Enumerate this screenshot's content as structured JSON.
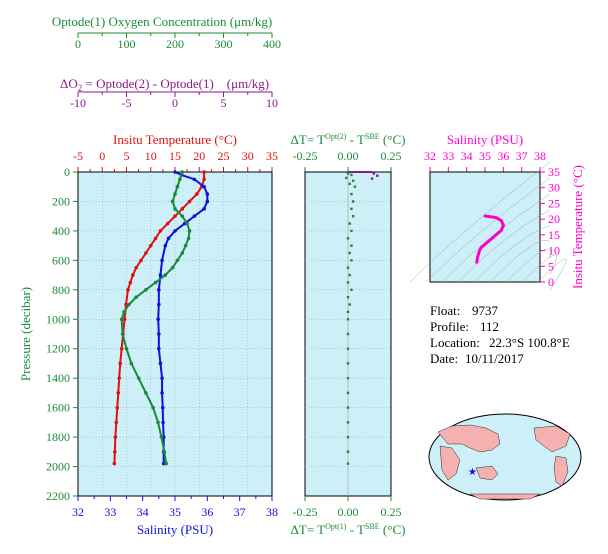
{
  "colors": {
    "oxygen": "#1a8a3a",
    "delta_o2": "#8a1a8a",
    "temperature": "#e01010",
    "salinity": "#1010e0",
    "pressure": "#1a8a3a",
    "panel_bg": "#cdeff7",
    "ts_curve": "#ff00cc",
    "delta_t": "#1a8a3a"
  },
  "info": {
    "float_label": "Float:",
    "float_value": "9737",
    "profile_label": "Profile:",
    "profile_value": "112",
    "location_label": "Location:",
    "location_value": "22.3°S 100.8°E",
    "date_label": "Date:",
    "date_value": "10/11/2017"
  },
  "chart_data": [
    {
      "type": "line",
      "panel": "main-profile",
      "axes": {
        "oxygen": {
          "label": "Optode(1) Oxygen Concentration (μm/kg)",
          "range": [
            0,
            400
          ],
          "ticks": [
            "0",
            "100",
            "200",
            "300",
            "400"
          ]
        },
        "delta_o2": {
          "label_left": "ΔO",
          "label_sub": "2",
          "label_right": " = Optode(2) - Optode(1)    (μm/kg)",
          "range": [
            -10,
            10
          ],
          "ticks": [
            "-10",
            "-5",
            "0",
            "5",
            "10"
          ]
        },
        "temperature": {
          "label": "Insitu Temperature (°C)",
          "range": [
            -5,
            35
          ],
          "ticks": [
            "-5",
            "0",
            "5",
            "10",
            "15",
            "20",
            "25",
            "30",
            "35"
          ]
        },
        "salinity": {
          "label": "Salinity (PSU)",
          "range": [
            32,
            38
          ],
          "ticks": [
            "32",
            "33",
            "34",
            "35",
            "36",
            "37",
            "38"
          ]
        },
        "pressure": {
          "label": "Pressure (decibar)",
          "range": [
            0,
            2200
          ],
          "ticks": [
            "0",
            "200",
            "400",
            "600",
            "800",
            "1000",
            "1200",
            "1400",
            "1600",
            "1800",
            "2000",
            "2200"
          ]
        }
      },
      "series": [
        {
          "name": "Insitu Temperature",
          "axis": "temperature",
          "points": [
            [
              21.0,
              0
            ],
            [
              21.0,
              50
            ],
            [
              20.5,
              100
            ],
            [
              19.5,
              150
            ],
            [
              18.0,
              200
            ],
            [
              16.5,
              250
            ],
            [
              15.0,
              300
            ],
            [
              13.5,
              350
            ],
            [
              12.0,
              400
            ],
            [
              11.0,
              450
            ],
            [
              10.0,
              500
            ],
            [
              9.0,
              550
            ],
            [
              8.0,
              600
            ],
            [
              7.0,
              650
            ],
            [
              6.3,
              700
            ],
            [
              5.8,
              750
            ],
            [
              5.3,
              800
            ],
            [
              4.9,
              900
            ],
            [
              4.6,
              1000
            ],
            [
              4.3,
              1100
            ],
            [
              4.0,
              1200
            ],
            [
              3.7,
              1300
            ],
            [
              3.5,
              1400
            ],
            [
              3.3,
              1500
            ],
            [
              3.1,
              1600
            ],
            [
              2.9,
              1700
            ],
            [
              2.7,
              1800
            ],
            [
              2.6,
              1900
            ],
            [
              2.5,
              1980
            ]
          ]
        },
        {
          "name": "Salinity",
          "axis": "salinity",
          "points": [
            [
              35.0,
              0
            ],
            [
              35.2,
              20
            ],
            [
              35.6,
              50
            ],
            [
              35.9,
              100
            ],
            [
              36.0,
              150
            ],
            [
              36.0,
              200
            ],
            [
              35.9,
              250
            ],
            [
              35.6,
              300
            ],
            [
              35.3,
              350
            ],
            [
              35.0,
              400
            ],
            [
              34.8,
              450
            ],
            [
              34.7,
              500
            ],
            [
              34.6,
              600
            ],
            [
              34.55,
              700
            ],
            [
              34.5,
              800
            ],
            [
              34.5,
              900
            ],
            [
              34.48,
              1000
            ],
            [
              34.5,
              1100
            ],
            [
              34.5,
              1200
            ],
            [
              34.55,
              1300
            ],
            [
              34.6,
              1400
            ],
            [
              34.6,
              1500
            ],
            [
              34.62,
              1600
            ],
            [
              34.63,
              1700
            ],
            [
              34.65,
              1800
            ],
            [
              34.65,
              1900
            ],
            [
              34.65,
              1980
            ]
          ]
        },
        {
          "name": "Optode(1) Oxygen Concentration",
          "axis": "oxygen",
          "points": [
            [
              215,
              0
            ],
            [
              210,
              50
            ],
            [
              205,
              100
            ],
            [
              200,
              150
            ],
            [
              195,
              200
            ],
            [
              200,
              250
            ],
            [
              215,
              300
            ],
            [
              225,
              350
            ],
            [
              230,
              400
            ],
            [
              228,
              450
            ],
            [
              222,
              500
            ],
            [
              215,
              550
            ],
            [
              205,
              600
            ],
            [
              195,
              650
            ],
            [
              180,
              700
            ],
            [
              160,
              750
            ],
            [
              140,
              800
            ],
            [
              120,
              850
            ],
            [
              105,
              900
            ],
            [
              95,
              950
            ],
            [
              90,
              1000
            ],
            [
              92,
              1100
            ],
            [
              100,
              1200
            ],
            [
              110,
              1300
            ],
            [
              125,
              1400
            ],
            [
              140,
              1500
            ],
            [
              155,
              1600
            ],
            [
              165,
              1700
            ],
            [
              172,
              1800
            ],
            [
              178,
              1900
            ],
            [
              182,
              1980
            ]
          ]
        }
      ]
    },
    {
      "type": "scatter",
      "panel": "delta-t",
      "title_left": "ΔT= T",
      "title_sup1": "Opt(2)",
      "title_mid": " - T",
      "title_sup2": "SBE",
      "title_right": " (°C)",
      "bottom_left": "ΔT= T",
      "bottom_sup1": "Opt(1)",
      "bottom_mid": " - T",
      "bottom_sup2": "SBE",
      "bottom_right": " (°C)",
      "xlim": [
        -0.25,
        0.25
      ],
      "ticks": [
        "-0.25",
        "0.00",
        "0.25"
      ],
      "points": [
        [
          0.0,
          10
        ],
        [
          0.02,
          20
        ],
        [
          -0.01,
          40
        ],
        [
          0.03,
          60
        ],
        [
          0.01,
          80
        ],
        [
          0.04,
          100
        ],
        [
          0.02,
          150
        ],
        [
          0.03,
          200
        ],
        [
          0.02,
          250
        ],
        [
          0.03,
          300
        ],
        [
          0.01,
          350
        ],
        [
          0.02,
          400
        ],
        [
          0.0,
          450
        ],
        [
          0.02,
          500
        ],
        [
          0.01,
          550
        ],
        [
          0.02,
          600
        ],
        [
          0.0,
          650
        ],
        [
          0.01,
          700
        ],
        [
          0.0,
          750
        ],
        [
          0.02,
          800
        ],
        [
          0.0,
          850
        ],
        [
          0.01,
          900
        ],
        [
          0.0,
          950
        ],
        [
          0.0,
          1000
        ],
        [
          0.0,
          1100
        ],
        [
          0.0,
          1200
        ],
        [
          0.0,
          1300
        ],
        [
          0.0,
          1400
        ],
        [
          0.0,
          1500
        ],
        [
          0.0,
          1600
        ],
        [
          0.0,
          1700
        ],
        [
          0.0,
          1800
        ],
        [
          0.0,
          1900
        ],
        [
          0.0,
          1980
        ]
      ],
      "top_points": [
        [
          0.15,
          10
        ],
        [
          0.17,
          25
        ],
        [
          0.14,
          45
        ]
      ]
    },
    {
      "type": "line",
      "panel": "ts-diagram",
      "xlabel": "Salinity (PSU)",
      "ylabel": "Insitu Temperature (°C)",
      "xlim": [
        32,
        38
      ],
      "ylim": [
        0,
        35
      ],
      "x_ticks": [
        "32",
        "33",
        "34",
        "35",
        "36",
        "37",
        "38"
      ],
      "y_ticks": [
        "0",
        "5",
        "10",
        "15",
        "20",
        "25",
        "30",
        "35"
      ],
      "points": [
        [
          35.0,
          21.0
        ],
        [
          35.6,
          20.5
        ],
        [
          35.9,
          19.5
        ],
        [
          36.0,
          18.0
        ],
        [
          35.9,
          16.5
        ],
        [
          35.6,
          15.0
        ],
        [
          35.3,
          13.5
        ],
        [
          35.0,
          12.0
        ],
        [
          34.8,
          11.0
        ],
        [
          34.7,
          10.0
        ],
        [
          34.6,
          8.0
        ],
        [
          34.55,
          6.3
        ]
      ]
    }
  ]
}
